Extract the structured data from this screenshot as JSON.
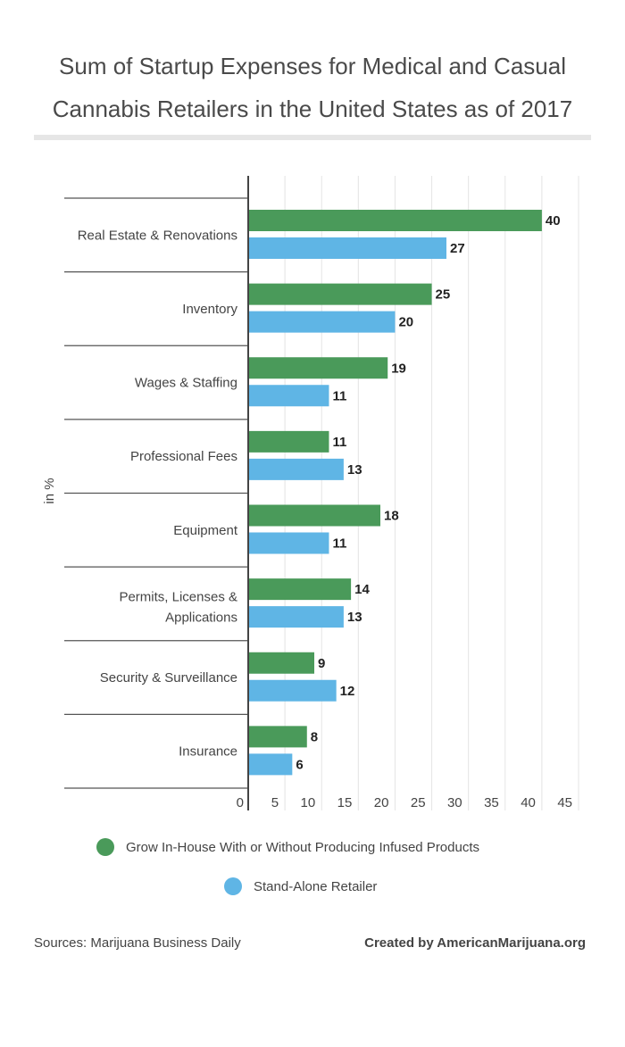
{
  "chart_data": {
    "type": "bar",
    "orientation": "horizontal",
    "title": "Sum of Startup Expenses for Medical and Casual Cannabis Retailers in the United States as of 2017",
    "title_lines": [
      "Sum of Startup Expenses for Medical and Casual",
      "Cannabis Retailers in the United States as of 2017"
    ],
    "ylabel": "in %",
    "xlabel": "",
    "xlim": [
      0,
      45
    ],
    "xticks": [
      0,
      5,
      10,
      15,
      20,
      25,
      30,
      35,
      40,
      45
    ],
    "grid": true,
    "legend_position": "bottom",
    "categories": [
      "Real Estate & Renovations",
      "Inventory",
      "Wages & Staffing",
      "Professional Fees",
      "Equipment",
      "Permits, Licenses & Applications",
      "Security & Surveillance",
      "Insurance"
    ],
    "series": [
      {
        "name": "Grow In-House With or Without Producing Infused Products",
        "color": "#4a9a5a",
        "values": [
          40,
          25,
          19,
          11,
          18,
          14,
          9,
          8
        ]
      },
      {
        "name": "Stand-Alone Retailer",
        "color": "#5fb5e5",
        "values": [
          27,
          20,
          11,
          13,
          11,
          13,
          12,
          6
        ]
      }
    ]
  },
  "footer": {
    "sources": "Sources:  Marijuana Business Daily",
    "credit": "Created by AmericanMarijuana.org"
  }
}
